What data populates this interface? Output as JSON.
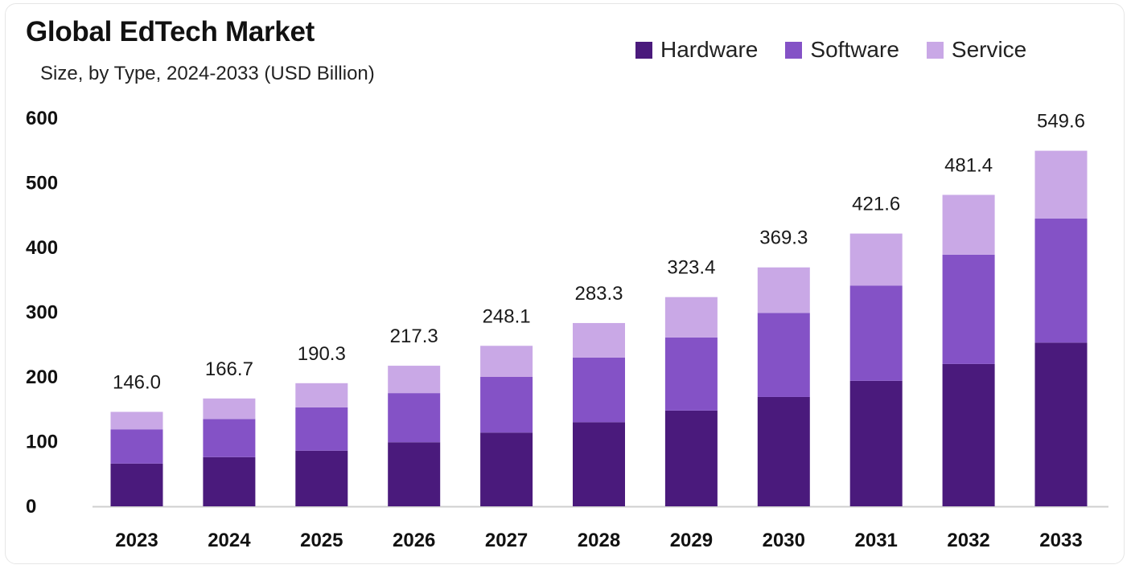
{
  "chart_data": {
    "type": "bar",
    "stacked": true,
    "title": "Global EdTech Market",
    "subtitle": "Size, by Type, 2024-2033 (USD Billion)",
    "xlabel": "",
    "ylabel": "",
    "ylim": [
      0,
      600
    ],
    "yticks": [
      0,
      100,
      200,
      300,
      400,
      500,
      600
    ],
    "legend_position": "top-right",
    "categories": [
      "2023",
      "2024",
      "2025",
      "2026",
      "2027",
      "2028",
      "2029",
      "2030",
      "2031",
      "2032",
      "2033"
    ],
    "series": [
      {
        "name": "Hardware",
        "color": "#4a1a7c",
        "values": [
          66,
          76,
          86,
          99,
          114,
          130,
          148,
          169,
          194,
          220,
          253
        ]
      },
      {
        "name": "Software",
        "color": "#8452c6",
        "values": [
          53,
          59,
          67,
          76,
          86,
          100,
          113,
          130,
          147,
          169,
          192
        ]
      },
      {
        "name": "Service",
        "color": "#c9a8e6",
        "values": [
          27,
          31.7,
          37.3,
          42.3,
          48.1,
          53.3,
          62.4,
          70.3,
          80.6,
          92.4,
          104.6
        ]
      }
    ],
    "totals": [
      "146.0",
      "166.7",
      "190.3",
      "217.3",
      "248.1",
      "283.3",
      "323.4",
      "369.3",
      "421.6",
      "481.4",
      "549.6"
    ]
  }
}
